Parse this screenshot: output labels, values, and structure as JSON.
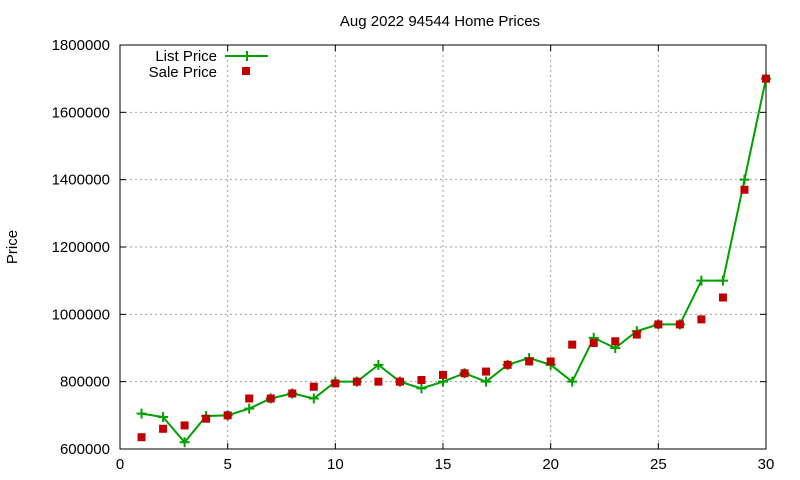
{
  "chart_data": {
    "type": "line",
    "title": "Aug 2022 94544 Home Prices",
    "xlabel": "",
    "ylabel": "Price",
    "xlim": [
      0,
      30
    ],
    "ylim": [
      600000,
      1800000
    ],
    "xticks": [
      0,
      5,
      10,
      15,
      20,
      25,
      30
    ],
    "yticks": [
      600000,
      800000,
      1000000,
      1200000,
      1400000,
      1600000,
      1800000
    ],
    "grid": true,
    "legend_position": "top-left",
    "x": [
      1,
      2,
      3,
      4,
      5,
      6,
      7,
      8,
      9,
      10,
      11,
      12,
      13,
      14,
      15,
      16,
      17,
      18,
      19,
      20,
      21,
      22,
      23,
      24,
      25,
      26,
      27,
      28,
      29,
      30
    ],
    "series": [
      {
        "name": "List Price",
        "style": "line-with-plus-markers",
        "color": "#00a000",
        "values": [
          705000,
          695000,
          620000,
          698000,
          700000,
          720000,
          750000,
          765000,
          750000,
          800000,
          800000,
          850000,
          800000,
          780000,
          800000,
          825000,
          800000,
          850000,
          870000,
          850000,
          800000,
          930000,
          900000,
          950000,
          970000,
          970000,
          1100000,
          1100000,
          1400000,
          1700000
        ]
      },
      {
        "name": "Sale Price",
        "style": "square-markers",
        "color": "#c00000",
        "values": [
          635000,
          660000,
          670000,
          690000,
          700000,
          750000,
          750000,
          765000,
          785000,
          795000,
          800000,
          800000,
          800000,
          805000,
          820000,
          825000,
          830000,
          850000,
          860000,
          860000,
          910000,
          915000,
          920000,
          940000,
          970000,
          970000,
          985000,
          1050000,
          1370000,
          1700000
        ]
      }
    ]
  }
}
